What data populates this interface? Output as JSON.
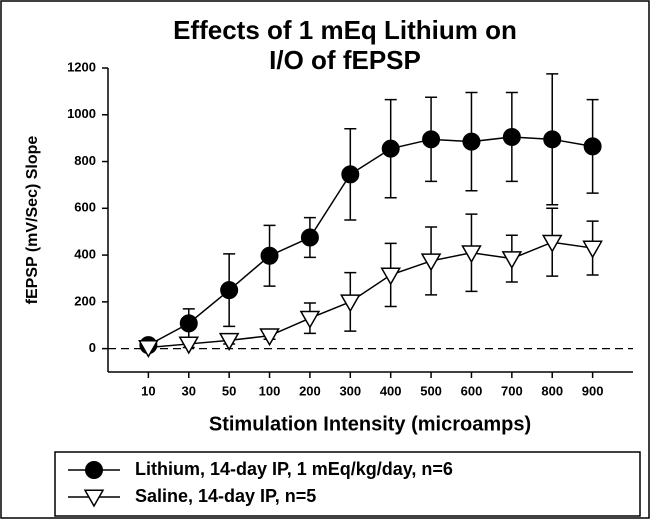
{
  "chart_data": {
    "type": "line",
    "title": [
      "Effects of 1 mEq Lithium on",
      "I/O of fEPSP"
    ],
    "x_label": "Stimulation Intensity (microamps)",
    "y_label": "fEPSP (mV/Sec) Slope",
    "categories": [
      "10",
      "30",
      "50",
      "100",
      "200",
      "300",
      "400",
      "500",
      "600",
      "700",
      "800",
      "900"
    ],
    "series": [
      {
        "name": "Lithium, 14-day IP, 1 mEq/kg/day, n=6",
        "color": "#000000",
        "marker": "circle",
        "values": [
          15,
          108,
          250,
          397,
          475,
          745,
          855,
          895,
          885,
          905,
          895,
          865
        ],
        "errors": [
          10,
          62,
          155,
          130,
          85,
          195,
          210,
          180,
          210,
          190,
          280,
          200
        ]
      },
      {
        "name": "Saline, 14-day IP, n=5",
        "color": "#000000",
        "marker": "triangle-down",
        "values": [
          5,
          20,
          35,
          55,
          130,
          200,
          315,
          375,
          410,
          385,
          455,
          430
        ],
        "errors": [
          10,
          15,
          15,
          15,
          65,
          125,
          135,
          145,
          165,
          100,
          145,
          115
        ]
      }
    ],
    "ylim": [
      -100,
      1200
    ],
    "yticks": [
      0,
      200,
      400,
      600,
      800,
      1000,
      1200
    ],
    "hline": 0,
    "legend": "bottom"
  }
}
